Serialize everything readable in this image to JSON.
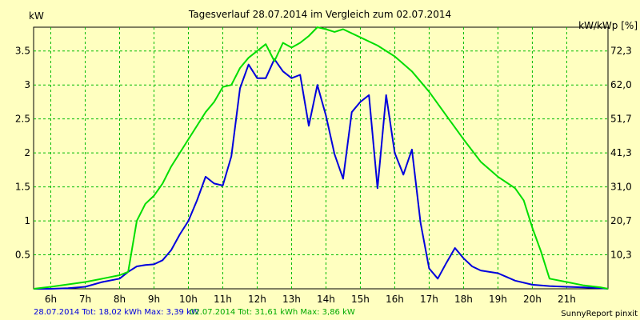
{
  "chart_data": {
    "type": "line",
    "title": "Tagesverlauf 28.07.2014 im Vergleich zum 02.07.2014",
    "ylabel_left": "kW",
    "ylabel_right": "kW/kWp [%]",
    "ylim": [
      0,
      3.85
    ],
    "xlim": [
      5.5,
      22.2
    ],
    "x_ticks": [
      {
        "x": 6,
        "label": "6h"
      },
      {
        "x": 7,
        "label": "7h"
      },
      {
        "x": 8,
        "label": "8h"
      },
      {
        "x": 9,
        "label": "9h"
      },
      {
        "x": 10,
        "label": "10h"
      },
      {
        "x": 11,
        "label": "11h"
      },
      {
        "x": 12,
        "label": "12h"
      },
      {
        "x": 13,
        "label": "13h"
      },
      {
        "x": 14,
        "label": "14h"
      },
      {
        "x": 15,
        "label": "15h"
      },
      {
        "x": 16,
        "label": "16h"
      },
      {
        "x": 17,
        "label": "17h"
      },
      {
        "x": 18,
        "label": "18h"
      },
      {
        "x": 19,
        "label": "19h"
      },
      {
        "x": 20,
        "label": "20h"
      },
      {
        "x": 21,
        "label": "21h"
      }
    ],
    "y_ticks_left": [
      {
        "v": 0.5,
        "label": "0.5"
      },
      {
        "v": 1,
        "label": "1"
      },
      {
        "v": 1.5,
        "label": "1.5"
      },
      {
        "v": 2,
        "label": "2"
      },
      {
        "v": 2.5,
        "label": "2.5"
      },
      {
        "v": 3,
        "label": "3"
      },
      {
        "v": 3.5,
        "label": "3.5"
      }
    ],
    "y_ticks_right": [
      {
        "v": 0.5,
        "label": "10,3"
      },
      {
        "v": 1,
        "label": "20,7"
      },
      {
        "v": 1.5,
        "label": "31,0"
      },
      {
        "v": 2,
        "label": "41,3"
      },
      {
        "v": 2.5,
        "label": "51,7"
      },
      {
        "v": 3,
        "label": "62,0"
      },
      {
        "v": 3.5,
        "label": "72,3"
      }
    ],
    "grid": true,
    "series": [
      {
        "name": "28.07.2014",
        "color": "#0000dd",
        "points": [
          [
            5.5,
            0
          ],
          [
            6,
            0
          ],
          [
            6.5,
            0.01
          ],
          [
            7,
            0.03
          ],
          [
            7.5,
            0.1
          ],
          [
            8,
            0.15
          ],
          [
            8.25,
            0.25
          ],
          [
            8.5,
            0.33
          ],
          [
            8.75,
            0.35
          ],
          [
            9,
            0.36
          ],
          [
            9.25,
            0.42
          ],
          [
            9.5,
            0.57
          ],
          [
            9.75,
            0.8
          ],
          [
            10,
            1.0
          ],
          [
            10.25,
            1.3
          ],
          [
            10.5,
            1.65
          ],
          [
            10.75,
            1.55
          ],
          [
            11,
            1.52
          ],
          [
            11.25,
            1.95
          ],
          [
            11.5,
            2.95
          ],
          [
            11.75,
            3.3
          ],
          [
            12,
            3.1
          ],
          [
            12.25,
            3.1
          ],
          [
            12.5,
            3.38
          ],
          [
            12.75,
            3.2
          ],
          [
            13,
            3.1
          ],
          [
            13.25,
            3.15
          ],
          [
            13.5,
            2.4
          ],
          [
            13.75,
            3.0
          ],
          [
            14,
            2.55
          ],
          [
            14.25,
            1.98
          ],
          [
            14.5,
            1.62
          ],
          [
            14.75,
            2.6
          ],
          [
            15,
            2.75
          ],
          [
            15.25,
            2.85
          ],
          [
            15.5,
            1.48
          ],
          [
            15.75,
            2.85
          ],
          [
            16,
            2.0
          ],
          [
            16.25,
            1.68
          ],
          [
            16.5,
            2.05
          ],
          [
            16.75,
            0.97
          ],
          [
            17,
            0.3
          ],
          [
            17.25,
            0.15
          ],
          [
            17.5,
            0.38
          ],
          [
            17.75,
            0.6
          ],
          [
            18,
            0.45
          ],
          [
            18.25,
            0.33
          ],
          [
            18.5,
            0.27
          ],
          [
            19,
            0.23
          ],
          [
            19.5,
            0.12
          ],
          [
            20,
            0.06
          ],
          [
            20.5,
            0.04
          ],
          [
            21,
            0.03
          ],
          [
            21.5,
            0.02
          ],
          [
            22,
            0.01
          ],
          [
            22.2,
            0
          ]
        ]
      },
      {
        "name": "02.07.2014",
        "color": "#00dd00",
        "points": [
          [
            5.5,
            0
          ],
          [
            6,
            0.03
          ],
          [
            7,
            0.1
          ],
          [
            7.5,
            0.15
          ],
          [
            8,
            0.2
          ],
          [
            8.25,
            0.25
          ],
          [
            8.5,
            1.0
          ],
          [
            8.75,
            1.25
          ],
          [
            9,
            1.37
          ],
          [
            9.25,
            1.55
          ],
          [
            9.5,
            1.8
          ],
          [
            10,
            2.2
          ],
          [
            10.5,
            2.6
          ],
          [
            10.75,
            2.75
          ],
          [
            11,
            2.97
          ],
          [
            11.25,
            3.0
          ],
          [
            11.5,
            3.25
          ],
          [
            11.75,
            3.4
          ],
          [
            12,
            3.5
          ],
          [
            12.25,
            3.6
          ],
          [
            12.5,
            3.35
          ],
          [
            12.75,
            3.62
          ],
          [
            13,
            3.55
          ],
          [
            13.25,
            3.62
          ],
          [
            13.5,
            3.72
          ],
          [
            13.75,
            3.85
          ],
          [
            14,
            3.82
          ],
          [
            14.25,
            3.78
          ],
          [
            14.5,
            3.82
          ],
          [
            15,
            3.7
          ],
          [
            15.5,
            3.58
          ],
          [
            16,
            3.42
          ],
          [
            16.5,
            3.2
          ],
          [
            17,
            2.9
          ],
          [
            17.5,
            2.55
          ],
          [
            18,
            2.2
          ],
          [
            18.5,
            1.87
          ],
          [
            19,
            1.65
          ],
          [
            19.5,
            1.48
          ],
          [
            19.75,
            1.3
          ],
          [
            20,
            0.9
          ],
          [
            20.25,
            0.55
          ],
          [
            20.5,
            0.15
          ],
          [
            21,
            0.1
          ],
          [
            21.5,
            0.05
          ],
          [
            22,
            0.02
          ],
          [
            22.2,
            0
          ]
        ]
      }
    ]
  },
  "footer": {
    "series1_summary": "28.07.2014 Tot: 18,02 kWh Max: 3,39 kW",
    "series2_summary": "02.07.2014 Tot: 31,61 kWh Max: 3,86 kW",
    "credit": "SunnyReport pinxit"
  }
}
